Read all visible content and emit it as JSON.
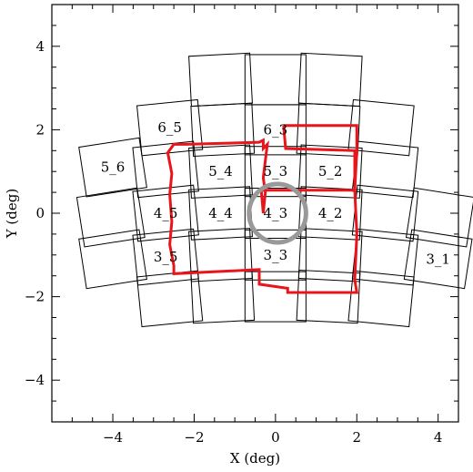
{
  "chart_data": {
    "type": "diagram",
    "xlabel": "X (deg)",
    "ylabel": "Y (deg)",
    "xlim": [
      -5.5,
      4.5
    ],
    "ylim": [
      -5,
      5
    ],
    "x_ticks": [
      -4,
      -2,
      0,
      2,
      4
    ],
    "y_ticks": [
      -4,
      -2,
      0,
      2,
      4
    ],
    "chip_rows": [
      {
        "row": 7,
        "chips": [
          {
            "x": -1.35,
            "y": 3.2,
            "label": ""
          },
          {
            "x": 0.0,
            "y": 3.2,
            "label": ""
          },
          {
            "x": 1.35,
            "y": 3.2,
            "label": ""
          }
        ]
      },
      {
        "row": 6,
        "chips": [
          {
            "x": -2.6,
            "y": 2.05,
            "label": "6_5"
          },
          {
            "x": -1.3,
            "y": 2.0,
            "label": ""
          },
          {
            "x": 0.0,
            "y": 2.0,
            "label": "6_3"
          },
          {
            "x": 1.3,
            "y": 2.0,
            "label": ""
          },
          {
            "x": 2.6,
            "y": 2.05,
            "label": ""
          }
        ]
      },
      {
        "row": 5,
        "chips": [
          {
            "x": -4.0,
            "y": 1.1,
            "label": "5_6"
          },
          {
            "x": -2.7,
            "y": 1.05,
            "label": ""
          },
          {
            "x": -1.35,
            "y": 1.0,
            "label": "5_4"
          },
          {
            "x": 0.0,
            "y": 1.0,
            "label": "5_3"
          },
          {
            "x": 1.35,
            "y": 1.0,
            "label": "5_2"
          },
          {
            "x": 2.7,
            "y": 1.05,
            "label": ""
          }
        ]
      },
      {
        "row": 4,
        "chips": [
          {
            "x": -4.05,
            "y": -0.1,
            "label": ""
          },
          {
            "x": -2.7,
            "y": 0.0,
            "label": "4_5"
          },
          {
            "x": -1.35,
            "y": 0.0,
            "label": "4_4"
          },
          {
            "x": 0.0,
            "y": 0.0,
            "label": "4_3"
          },
          {
            "x": 1.35,
            "y": 0.0,
            "label": "4_2"
          },
          {
            "x": 2.7,
            "y": 0.0,
            "label": ""
          },
          {
            "x": 4.05,
            "y": -0.1,
            "label": ""
          }
        ]
      },
      {
        "row": 3,
        "chips": [
          {
            "x": -4.0,
            "y": -1.1,
            "label": ""
          },
          {
            "x": -2.7,
            "y": -1.05,
            "label": "3_5"
          },
          {
            "x": -1.35,
            "y": -1.0,
            "label": ""
          },
          {
            "x": 0.0,
            "y": -1.0,
            "label": "3_3"
          },
          {
            "x": 1.35,
            "y": -1.0,
            "label": ""
          },
          {
            "x": 2.7,
            "y": -1.05,
            "label": ""
          },
          {
            "x": 4.0,
            "y": -1.1,
            "label": "3_1"
          }
        ]
      },
      {
        "row": 2,
        "chips": [
          {
            "x": -2.6,
            "y": -2.05,
            "label": ""
          },
          {
            "x": -1.3,
            "y": -2.0,
            "label": ""
          },
          {
            "x": 0.0,
            "y": -2.0,
            "label": ""
          },
          {
            "x": 1.3,
            "y": -2.0,
            "label": ""
          },
          {
            "x": 2.6,
            "y": -2.05,
            "label": ""
          }
        ]
      }
    ],
    "footprint": {
      "color": "#e8151b",
      "points": [
        [
          0.2,
          2.1
        ],
        [
          2.0,
          2.1
        ],
        [
          2.0,
          1.5
        ],
        [
          1.95,
          0.55
        ],
        [
          2.0,
          -0.5
        ],
        [
          1.95,
          -1.6
        ],
        [
          2.0,
          -1.9
        ],
        [
          0.3,
          -1.9
        ],
        [
          0.3,
          -1.8
        ],
        [
          -0.4,
          -1.7
        ],
        [
          -0.4,
          -1.35
        ],
        [
          -2.5,
          -1.45
        ],
        [
          -2.5,
          -1.25
        ],
        [
          -2.6,
          -0.75
        ],
        [
          -2.55,
          -0.2
        ],
        [
          -2.6,
          0.45
        ],
        [
          -2.55,
          0.95
        ],
        [
          -2.65,
          1.45
        ],
        [
          -2.5,
          1.65
        ],
        [
          -2.25,
          1.65
        ],
        [
          -2.2,
          1.65
        ],
        [
          -0.4,
          1.7
        ],
        [
          -0.3,
          1.75
        ],
        [
          -0.3,
          1.55
        ],
        [
          -0.2,
          1.65
        ],
        [
          -0.3,
          0.85
        ],
        [
          -0.25,
          0.5
        ],
        [
          -0.3,
          0.0
        ],
        [
          -0.35,
          0.55
        ],
        [
          1.95,
          0.55
        ],
        [
          1.95,
          1.5
        ],
        [
          0.25,
          1.55
        ],
        [
          0.2,
          2.1
        ]
      ]
    },
    "circle": {
      "cx": 0.05,
      "cy": 0.0,
      "r": 0.7,
      "color": "#999999"
    }
  }
}
